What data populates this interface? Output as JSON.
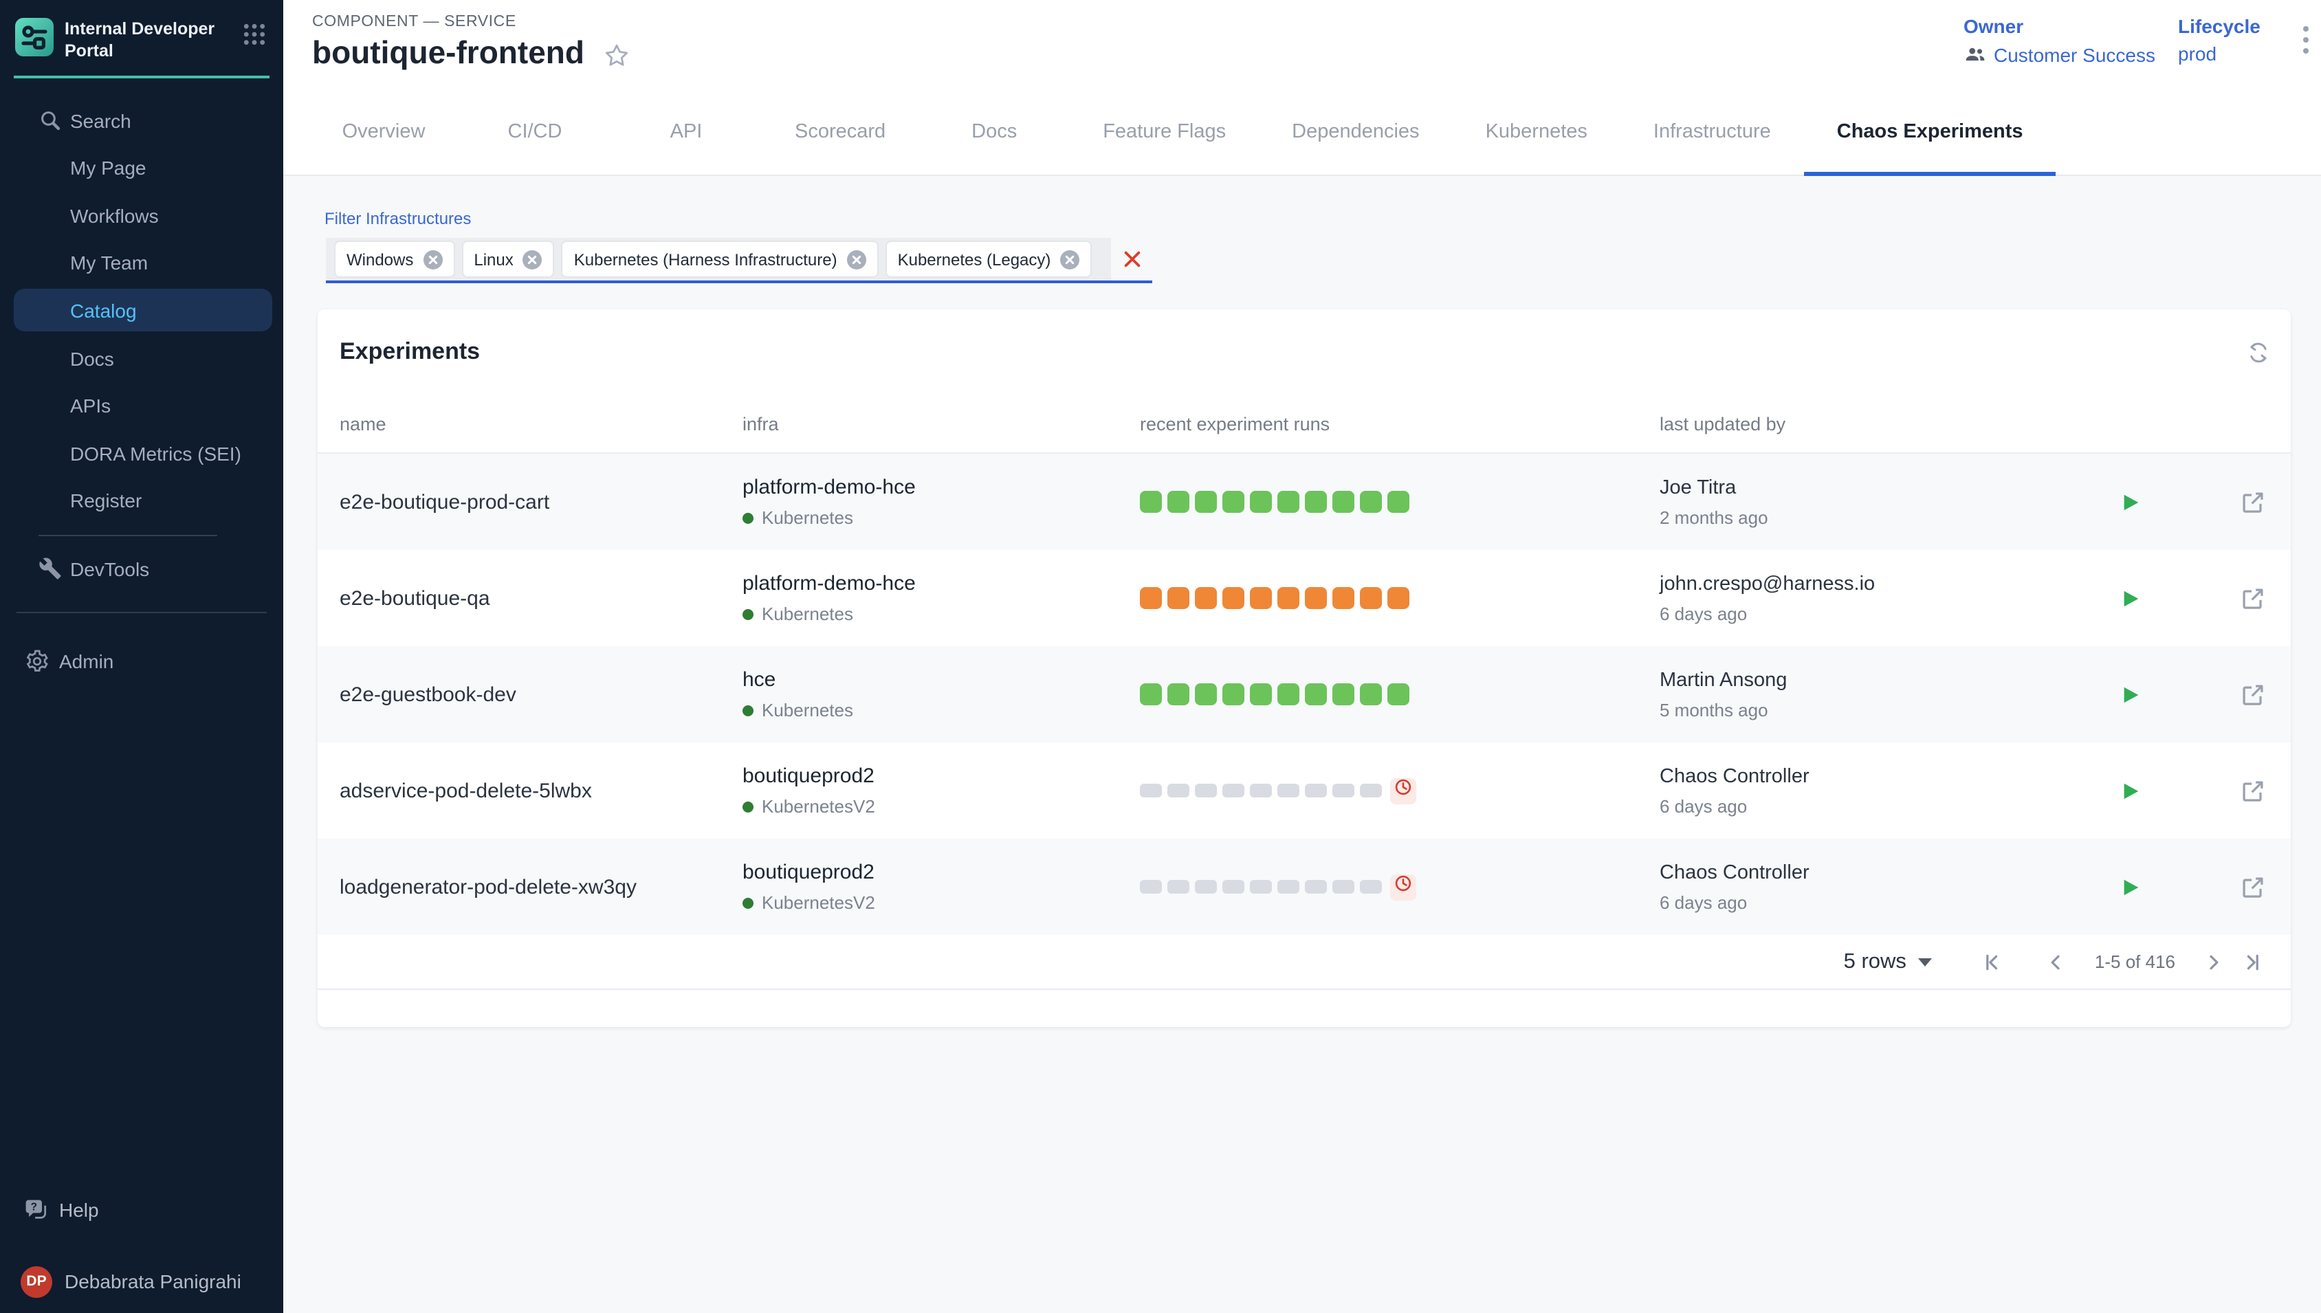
{
  "app": {
    "title": "Internal Developer Portal"
  },
  "sidebar": {
    "items": [
      {
        "label": "Search",
        "icon": "search"
      },
      {
        "label": "My Page"
      },
      {
        "label": "Workflows"
      },
      {
        "label": "My Team"
      },
      {
        "label": "Catalog",
        "active": true
      },
      {
        "label": "Docs"
      },
      {
        "label": "APIs"
      },
      {
        "label": "DORA Metrics (SEI)"
      },
      {
        "label": "Register"
      }
    ],
    "devtools_label": "DevTools",
    "admin_label": "Admin",
    "help_label": "Help",
    "user": {
      "initials": "DP",
      "name": "Debabrata Panigrahi"
    }
  },
  "header": {
    "kicker": "COMPONENT — SERVICE",
    "title": "boutique-frontend",
    "owner_label": "Owner",
    "owner_value": "Customer Success",
    "lifecycle_label": "Lifecycle",
    "lifecycle_value": "prod"
  },
  "tabs": [
    {
      "label": "Overview"
    },
    {
      "label": "CI/CD"
    },
    {
      "label": "API"
    },
    {
      "label": "Scorecard"
    },
    {
      "label": "Docs"
    },
    {
      "label": "Feature Flags"
    },
    {
      "label": "Dependencies"
    },
    {
      "label": "Kubernetes"
    },
    {
      "label": "Infrastructure"
    },
    {
      "label": "Chaos Experiments",
      "active": true
    }
  ],
  "filter": {
    "label": "Filter Infrastructures",
    "chips": [
      "Windows",
      "Linux",
      "Kubernetes (Harness Infrastructure)",
      "Kubernetes (Legacy)"
    ]
  },
  "experiments": {
    "title": "Experiments",
    "columns": [
      "name",
      "infra",
      "recent experiment runs",
      "last updated by"
    ],
    "rows": [
      {
        "name": "e2e-boutique-prod-cart",
        "infra": {
          "name": "platform-demo-hce",
          "type": "Kubernetes"
        },
        "runs": {
          "count": 10,
          "status": "passed",
          "color": "#6cc35a",
          "flat": false,
          "clock": false
        },
        "updated": {
          "by": "Joe Titra",
          "ago": "2 months ago"
        }
      },
      {
        "name": "e2e-boutique-qa",
        "infra": {
          "name": "platform-demo-hce",
          "type": "Kubernetes"
        },
        "runs": {
          "count": 10,
          "status": "failed",
          "color": "#ef8736",
          "flat": false,
          "clock": false
        },
        "updated": {
          "by": "john.crespo@harness.io",
          "ago": "6 days ago"
        }
      },
      {
        "name": "e2e-guestbook-dev",
        "infra": {
          "name": "hce",
          "type": "Kubernetes"
        },
        "runs": {
          "count": 10,
          "status": "passed",
          "color": "#6cc35a",
          "flat": false,
          "clock": false
        },
        "updated": {
          "by": "Martin Ansong",
          "ago": "5 months ago"
        }
      },
      {
        "name": "adservice-pod-delete-5lwbx",
        "infra": {
          "name": "boutiqueprod2",
          "type": "KubernetesV2"
        },
        "runs": {
          "count": 9,
          "status": "not-run",
          "color": "#d9dbe3",
          "flat": true,
          "clock": true
        },
        "updated": {
          "by": "Chaos Controller",
          "ago": "6 days ago"
        }
      },
      {
        "name": "loadgenerator-pod-delete-xw3qy",
        "infra": {
          "name": "boutiqueprod2",
          "type": "KubernetesV2"
        },
        "runs": {
          "count": 9,
          "status": "not-run",
          "color": "#d9dbe3",
          "flat": true,
          "clock": true
        },
        "updated": {
          "by": "Chaos Controller",
          "ago": "6 days ago"
        }
      }
    ],
    "pagination": {
      "rows_label": "5 rows",
      "range": "1-5 of 416"
    }
  },
  "colors": {
    "sidebar_bg": "#0e1c2e",
    "accent_teal": "#3fc2ab",
    "selected_nav_bg": "#1d3355",
    "selected_nav_text": "#56c1f8",
    "link_blue": "#3a67d3",
    "tab_active_underline": "#2a63d9",
    "run_passed": "#6cc35a",
    "run_failed": "#ef8736",
    "run_none": "#d9dbe3",
    "alert_red": "#d63b2f",
    "avatar_red": "#c13a2c",
    "page_bg": "#f6f8fa",
    "card_bg": "#ffffff"
  },
  "icons": [
    "sliders-logo",
    "apps-grid",
    "search",
    "wrench",
    "gear",
    "help-bubble",
    "star",
    "users",
    "kebab-menu",
    "refresh",
    "chip-remove",
    "clear-filter",
    "play",
    "external-link",
    "clock-pending",
    "first-page",
    "prev-page",
    "next-page",
    "last-page",
    "caret-down"
  ]
}
